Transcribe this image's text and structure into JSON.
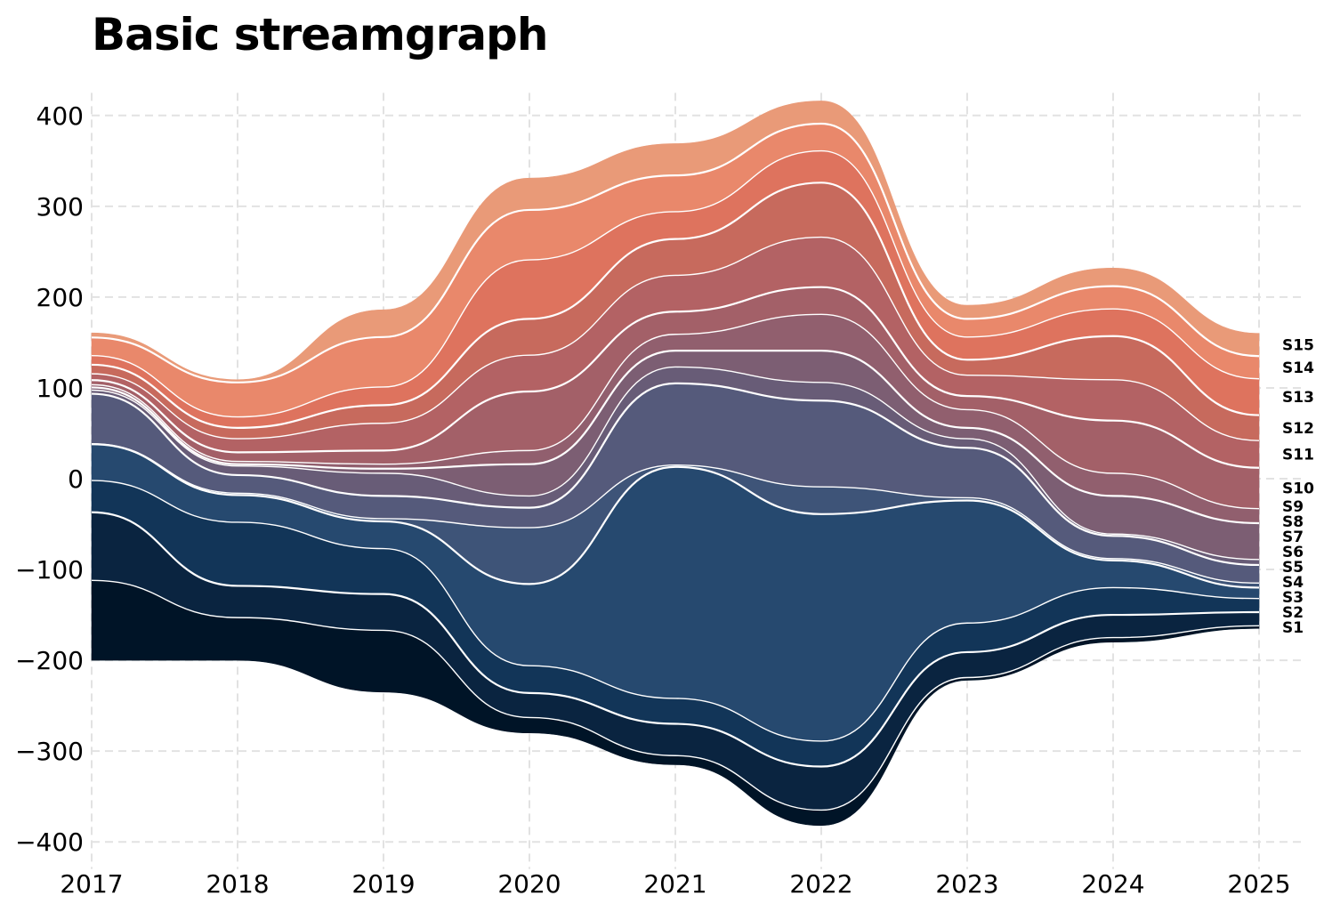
{
  "chart_data": {
    "type": "area",
    "title": "Basic streamgraph",
    "xlabel": "",
    "ylabel": "",
    "x": [
      "2017",
      "2018",
      "2019",
      "2020",
      "2021",
      "2022",
      "2023",
      "2024",
      "2025"
    ],
    "xlim": [
      2017,
      2025
    ],
    "ylim": [
      -420,
      420
    ],
    "yticks": [
      -400,
      -300,
      -200,
      -100,
      0,
      100,
      200,
      300,
      400
    ],
    "ytick_labels": [
      "−400",
      "−300",
      "−200",
      "−100",
      "0",
      "100",
      "200",
      "300",
      "400"
    ],
    "grid": true,
    "baseline": [
      -200,
      -200,
      -235,
      -280,
      -315,
      -382,
      -222,
      -180,
      -165
    ],
    "series": [
      {
        "name": "S1",
        "values": [
          88,
          47,
          68,
          17,
          10,
          17,
          3,
          5,
          3
        ],
        "color": "#001427"
      },
      {
        "name": "S2",
        "values": [
          75,
          35,
          40,
          27,
          35,
          48,
          28,
          25,
          15
        ],
        "color": "#0a2440"
      },
      {
        "name": "S3",
        "values": [
          35,
          70,
          50,
          30,
          28,
          28,
          32,
          30,
          15
        ],
        "color": "#123558"
      },
      {
        "name": "S4",
        "values": [
          40,
          30,
          30,
          90,
          255,
          250,
          135,
          30,
          12
        ],
        "color": "#26496f"
      },
      {
        "name": "S5",
        "values": [
          0.5,
          2,
          3,
          62,
          2,
          30,
          3,
          2,
          5
        ],
        "color": "#3e5478"
      },
      {
        "name": "S6",
        "values": [
          55,
          20,
          25,
          22,
          90,
          95,
          55,
          25,
          20
        ],
        "color": "#555a7b"
      },
      {
        "name": "S7",
        "values": [
          4,
          10,
          25,
          13,
          18,
          20,
          10,
          2,
          6
        ],
        "color": "#685c77"
      },
      {
        "name": "S8",
        "values": [
          3,
          2,
          5,
          35,
          18,
          35,
          12,
          42,
          40
        ],
        "color": "#7c5e73"
      },
      {
        "name": "S9",
        "values": [
          3,
          3,
          5,
          15,
          18,
          40,
          20,
          25,
          16
        ],
        "color": "#915f6e"
      },
      {
        "name": "S10",
        "values": [
          5,
          10,
          15,
          65,
          25,
          30,
          15,
          58,
          45
        ],
        "color": "#a36068"
      },
      {
        "name": "S11",
        "values": [
          7,
          15,
          30,
          40,
          40,
          55,
          23,
          45,
          30
        ],
        "color": "#b36264"
      },
      {
        "name": "S12",
        "values": [
          10,
          12,
          20,
          40,
          40,
          60,
          17,
          48,
          28
        ],
        "color": "#c76a5d"
      },
      {
        "name": "S13",
        "values": [
          10,
          12,
          20,
          65,
          30,
          35,
          25,
          30,
          40
        ],
        "color": "#de735e"
      },
      {
        "name": "S14",
        "values": [
          20,
          38,
          55,
          55,
          40,
          30,
          20,
          25,
          25
        ],
        "color": "#e9886b"
      },
      {
        "name": "S15",
        "values": [
          5,
          3,
          30,
          35,
          35,
          25,
          15,
          20,
          25
        ],
        "color": "#e99a78"
      }
    ]
  }
}
